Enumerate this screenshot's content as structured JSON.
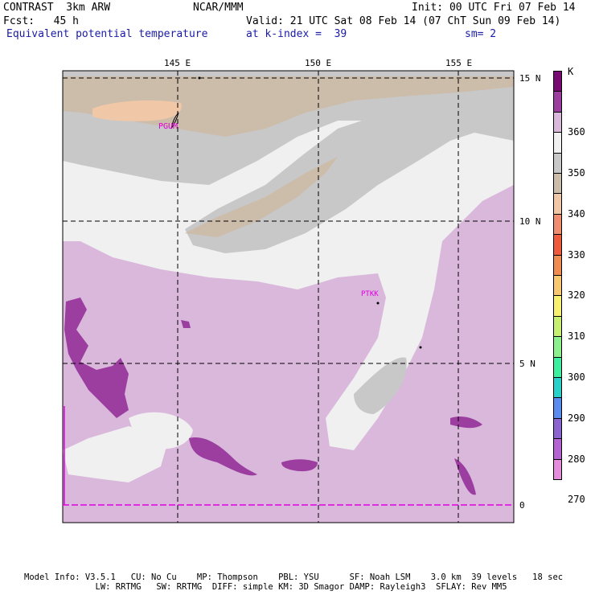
{
  "header": {
    "line1_left": "CONTRAST  3km ARW",
    "line1_mid": "NCAR/MMM",
    "line1_right": "Init: 00 UTC Fri 07 Feb 14",
    "line2_left": "Fcst:   45 h",
    "line2_right": "Valid: 21 UTC Sat 08 Feb 14 (07 ChT Sun 09 Feb 14)",
    "line3_left": "Equivalent potential temperature",
    "line3_mid": "at k-index =  39",
    "line3_right": "sm= 2"
  },
  "map": {
    "lon_labels": [
      "145 E",
      "150 E",
      "155 E"
    ],
    "lat_labels": [
      "15 N",
      "10 N",
      "5 N",
      "0"
    ],
    "stations": [
      "PGUM",
      "PTKK"
    ]
  },
  "colorbar": {
    "unit": "K",
    "labels": [
      "360",
      "350",
      "340",
      "330",
      "320",
      "310",
      "300",
      "290",
      "280",
      "270"
    ],
    "colors": [
      "#7a0a73",
      "#9c3da0",
      "#d9b8dc",
      "#f0f0f0",
      "#c8c8c8",
      "#ccbcaa",
      "#f0c8a8",
      "#f08c70",
      "#f05a3c",
      "#f08c50",
      "#f8c870",
      "#f8f070",
      "#c8f070",
      "#8cf08c",
      "#3cf0a0",
      "#28d2c8",
      "#5a8cf0",
      "#8c64d2",
      "#b464d2",
      "#e68cdc"
    ]
  },
  "footer": {
    "line1": "Model Info: V3.5.1   CU: No Cu    MP: Thompson    PBL: YSU      SF: Noah LSM    3.0 km  39 levels   18 sec",
    "line2": "              LW: RRTMG   SW: RRTMG  DIFF: simple KM: 3D Smagor DAMP: Rayleigh3  SFLAY: Rev MM5"
  }
}
